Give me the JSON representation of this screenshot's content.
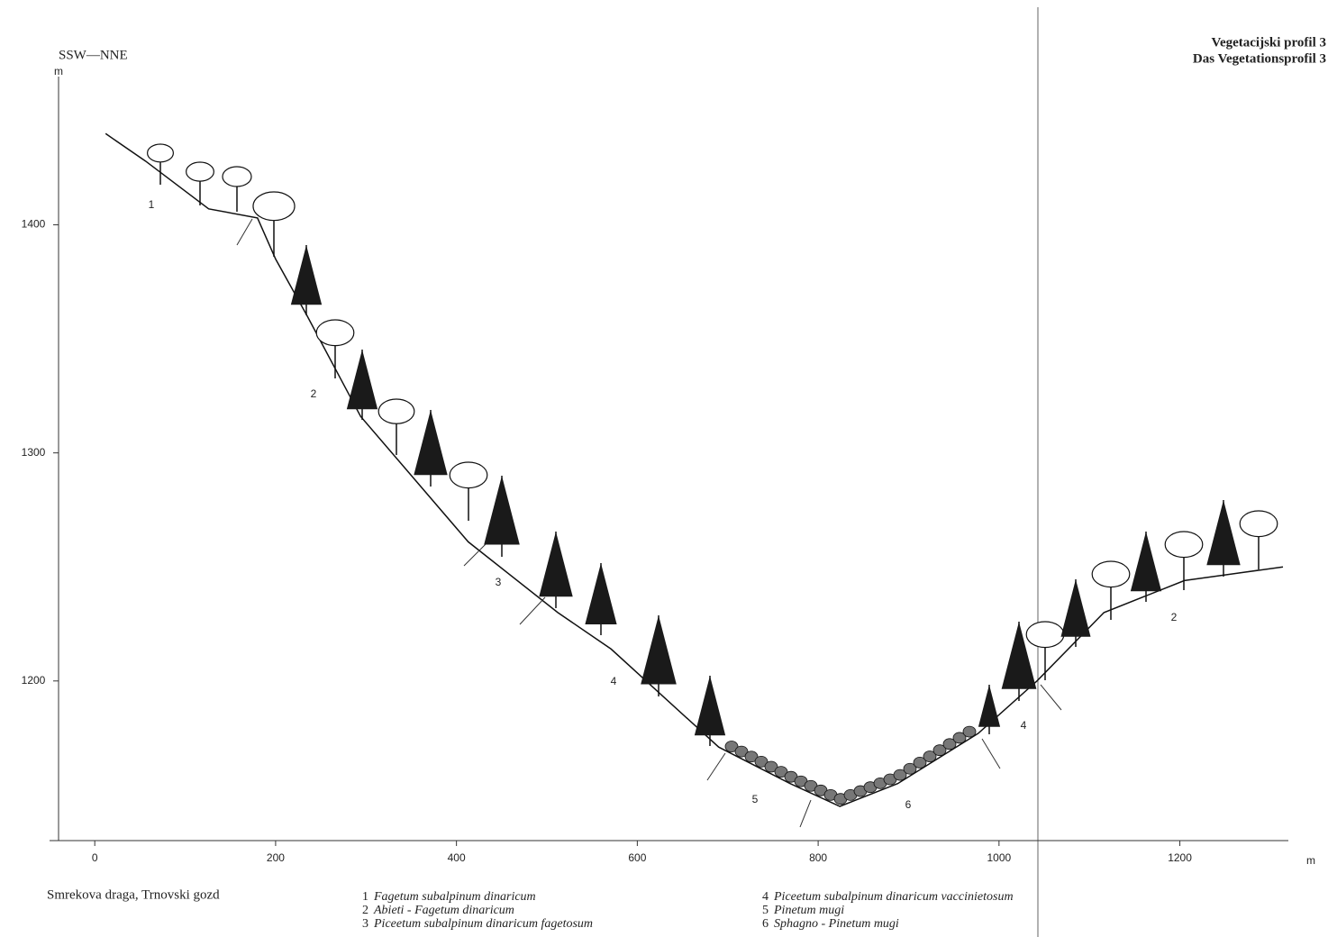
{
  "chart_data": {
    "type": "line",
    "title": "SSW—NNE",
    "subtitle": [
      "Vegetacijski profil 3",
      "Das Vegetationsprofil 3"
    ],
    "y_label": "m",
    "x_label": "m",
    "caption": "Smrekova draga, Trnovski gozd",
    "x": [
      12,
      56,
      126,
      180,
      200,
      235,
      294,
      413,
      512,
      571,
      690,
      769,
      824,
      888,
      977,
      1042,
      1116,
      1205,
      1314
    ],
    "values": [
      1440,
      1428,
      1407,
      1403,
      1385,
      1360,
      1316,
      1261,
      1230,
      1214,
      1171,
      1155,
      1145,
      1155,
      1177,
      1200,
      1230,
      1244,
      1250
    ],
    "color": "#111111",
    "xlim": [
      -50,
      1320
    ],
    "ylim": [
      1130,
      1465
    ],
    "xticks": [
      0,
      200,
      400,
      600,
      800,
      1000,
      1200
    ],
    "yticks": [
      1200,
      1300,
      1400
    ],
    "zone_labels": [
      "1",
      "2",
      "3",
      "4",
      "5",
      "6",
      "4",
      "2"
    ],
    "legend": [
      {
        "number": "1",
        "name": "Fagetum subalpinum dinaricum"
      },
      {
        "number": "2",
        "name": "Abieti - Fagetum dinaricum"
      },
      {
        "number": "3",
        "name": "Piceetum subalpinum dinaricum fagetosum"
      },
      {
        "number": "4",
        "name": "Piceetum subalpinum dinaricum vaccinietosum"
      },
      {
        "number": "5",
        "name": "Pinetum mugi"
      },
      {
        "number": "6",
        "name": "Sphagno - Pinetum mugi"
      }
    ]
  }
}
